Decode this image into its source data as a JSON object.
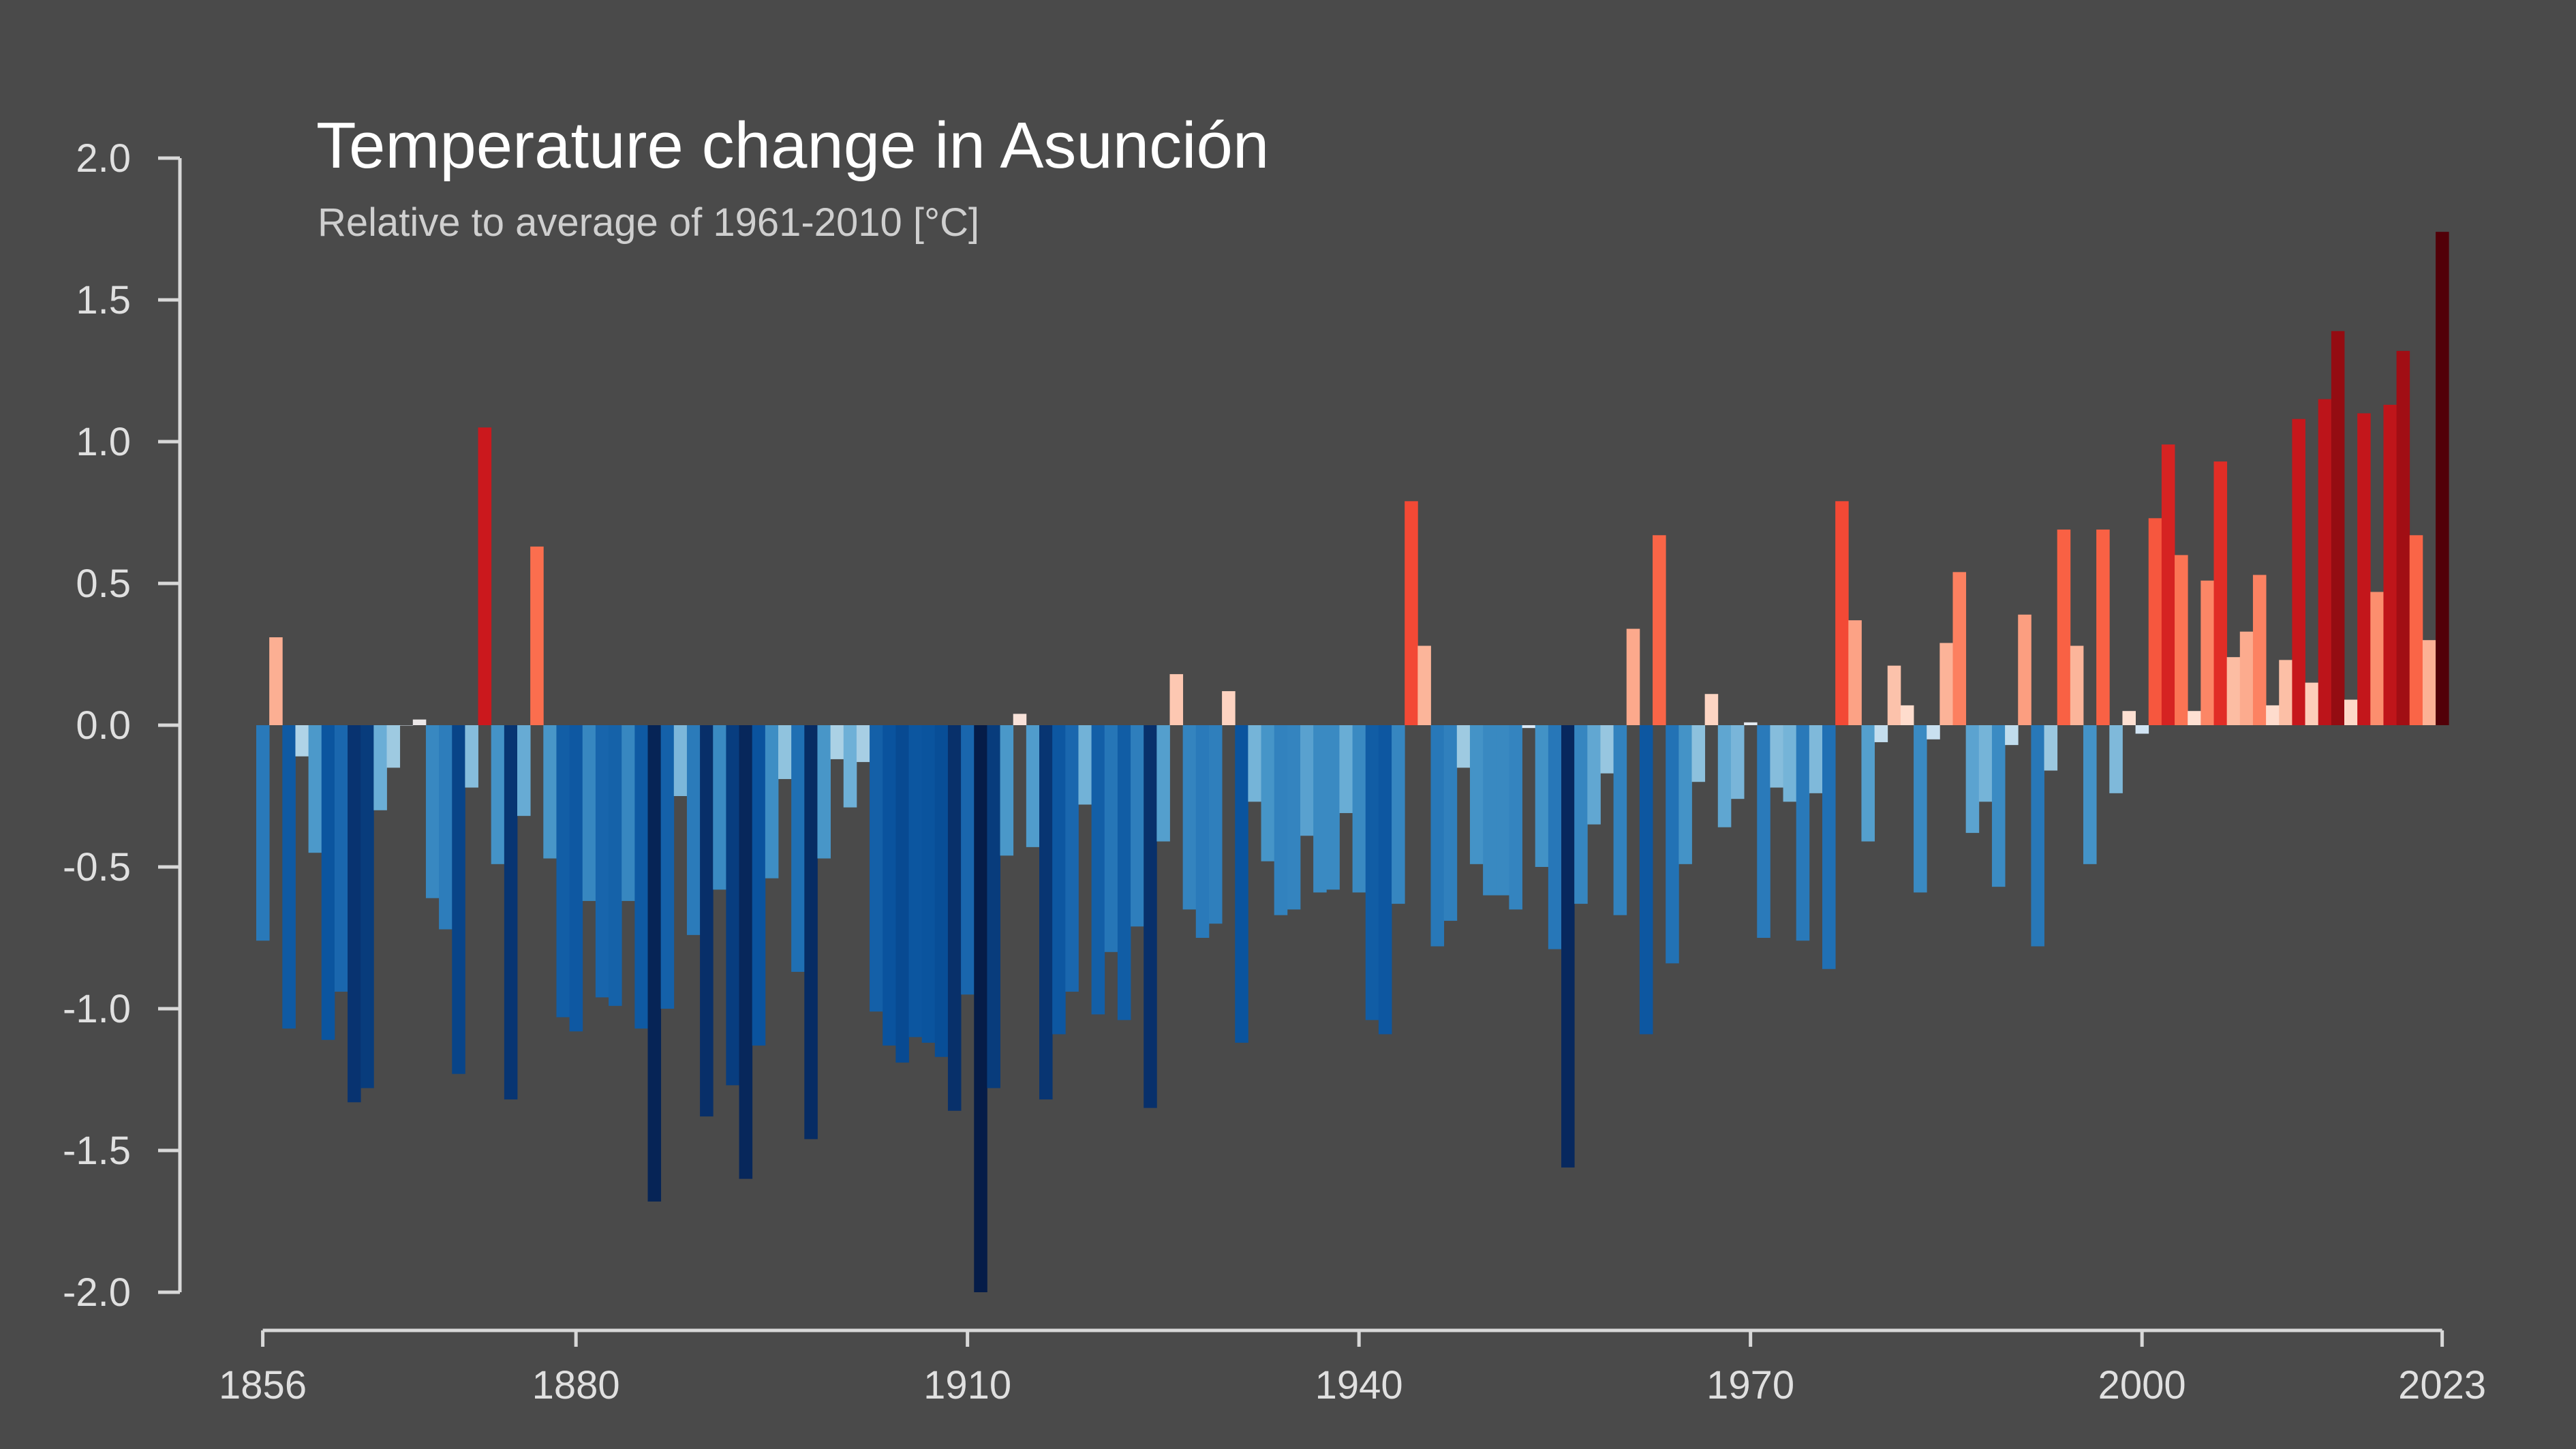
{
  "chart_data": {
    "type": "bar",
    "title": "Temperature change in Asunción",
    "subtitle": "Relative to average of 1961-2010  [°C]",
    "xlabel": "",
    "ylabel": "",
    "ylim": [
      -2.0,
      2.0
    ],
    "yticks": [
      2.0,
      1.5,
      1.0,
      0.5,
      0.0,
      -0.5,
      -1.0,
      -1.5,
      -2.0
    ],
    "ytick_labels": [
      "2.0",
      "1.5",
      "1.0",
      "0.5",
      "0.0",
      "-0.5",
      "-1.0",
      "-1.5",
      "-2.0"
    ],
    "xticks": [
      1856,
      1880,
      1910,
      1940,
      1970,
      2000,
      2023
    ],
    "xtick_labels": [
      "1856",
      "1880",
      "1910",
      "1940",
      "1970",
      "2000",
      "2023"
    ],
    "x_start": 1856,
    "x_end": 2023,
    "color_scale": {
      "min": -2.0,
      "max": 1.75,
      "palette": "red-blue warming stripes"
    },
    "values": [
      -0.76,
      0.31,
      -1.07,
      -0.11,
      -0.45,
      -1.11,
      -0.94,
      -1.33,
      -1.28,
      -0.3,
      -0.15,
      0.0,
      0.02,
      -0.61,
      -0.72,
      -1.23,
      -0.22,
      1.05,
      -0.49,
      -1.32,
      -0.32,
      0.63,
      -0.47,
      -1.03,
      -1.08,
      -0.62,
      -0.96,
      -0.99,
      -0.62,
      -1.07,
      -1.68,
      -1.0,
      -0.25,
      -0.74,
      -1.38,
      -0.58,
      -1.27,
      -1.6,
      -1.13,
      -0.54,
      -0.19,
      -0.87,
      -1.46,
      -0.47,
      -0.12,
      -0.29,
      -0.13,
      -1.01,
      -1.13,
      -1.19,
      -1.1,
      -1.12,
      -1.17,
      -1.36,
      -0.95,
      -2.0,
      -1.28,
      -0.46,
      0.04,
      -0.43,
      -1.32,
      -1.09,
      -0.94,
      -0.28,
      -1.02,
      -0.8,
      -1.04,
      -0.71,
      -1.35,
      -0.41,
      0.18,
      -0.65,
      -0.75,
      -0.7,
      0.12,
      -1.12,
      -0.27,
      -0.48,
      -0.67,
      -0.65,
      -0.39,
      -0.59,
      -0.58,
      -0.31,
      -0.59,
      -1.04,
      -1.09,
      -0.63,
      0.79,
      0.28,
      -0.78,
      -0.69,
      -0.15,
      -0.49,
      -0.6,
      -0.6,
      -0.65,
      -0.01,
      -0.5,
      -0.79,
      -1.56,
      -0.63,
      -0.35,
      -0.17,
      -0.67,
      0.34,
      -1.09,
      0.67,
      -0.84,
      -0.49,
      -0.2,
      0.11,
      -0.36,
      -0.26,
      0.01,
      -0.75,
      -0.22,
      -0.27,
      -0.76,
      -0.24,
      -0.86,
      0.79,
      0.37,
      -0.41,
      -0.06,
      0.21,
      0.07,
      -0.59,
      -0.05,
      0.29,
      0.54,
      -0.38,
      -0.27,
      -0.57,
      -0.07,
      0.39,
      -0.78,
      -0.16,
      0.69,
      0.28,
      -0.49,
      0.69,
      -0.24,
      0.05,
      -0.03,
      0.73,
      0.99,
      0.6,
      0.05,
      0.51,
      0.93,
      0.24,
      0.33,
      0.53,
      0.07,
      0.23,
      1.08,
      0.15,
      1.15,
      1.39,
      0.09,
      1.1,
      0.47,
      1.13,
      1.32,
      0.67,
      0.3,
      1.74
    ]
  }
}
